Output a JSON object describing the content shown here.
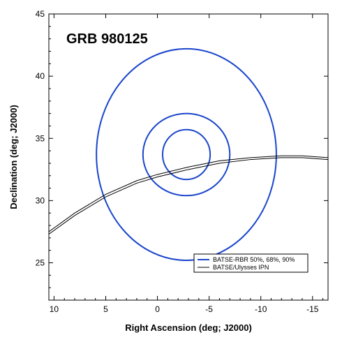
{
  "chart_data": {
    "type": "line",
    "title": "",
    "annotation": "GRB 980125",
    "xlabel": "Right Ascension (deg; J2000)",
    "ylabel": "Declination (deg; J2000)",
    "xlim": [
      10.5,
      -16.5
    ],
    "ylim": [
      22,
      45
    ],
    "x_reversed": true,
    "x_ticks": [
      10,
      5,
      0,
      -5,
      -10,
      -15
    ],
    "x_tick_labels": [
      "10",
      "5",
      "0",
      "-5",
      "-10",
      "-15"
    ],
    "y_ticks": [
      25,
      30,
      35,
      40,
      45
    ],
    "y_tick_labels": [
      "25",
      "30",
      "35",
      "40",
      "45"
    ],
    "grid": false,
    "legend_position": "bottom-right",
    "series": [
      {
        "name": "BATSE-RBR 50%, 68%, 90%",
        "kind": "contours",
        "color": "#1a45cc",
        "contours": [
          {
            "center": [
              -2.8,
              33.7
            ],
            "rx": 2.3,
            "ry": 2.0
          },
          {
            "center": [
              -2.8,
              33.7
            ],
            "rx": 4.2,
            "ry": 3.3
          },
          {
            "center": [
              -2.8,
              33.7
            ],
            "rx": 8.7,
            "ry": 8.5
          }
        ]
      },
      {
        "name": "BATSE/Ulysses IPN",
        "kind": "annulus",
        "color": "#000000",
        "lines": [
          {
            "x": [
              10.5,
              8,
              5,
              2,
              0,
              -3,
              -6,
              -9,
              -12,
              -14,
              -16.5
            ],
            "y": [
              27.3,
              28.8,
              30.3,
              31.4,
              31.9,
              32.5,
              33.0,
              33.3,
              33.45,
              33.45,
              33.3
            ]
          },
          {
            "x": [
              10.5,
              8,
              5,
              2,
              0,
              -3,
              -6,
              -9,
              -12,
              -14,
              -16.5
            ],
            "y": [
              27.5,
              29.0,
              30.5,
              31.6,
              32.1,
              32.7,
              33.2,
              33.45,
              33.6,
              33.6,
              33.45
            ]
          }
        ]
      }
    ]
  }
}
